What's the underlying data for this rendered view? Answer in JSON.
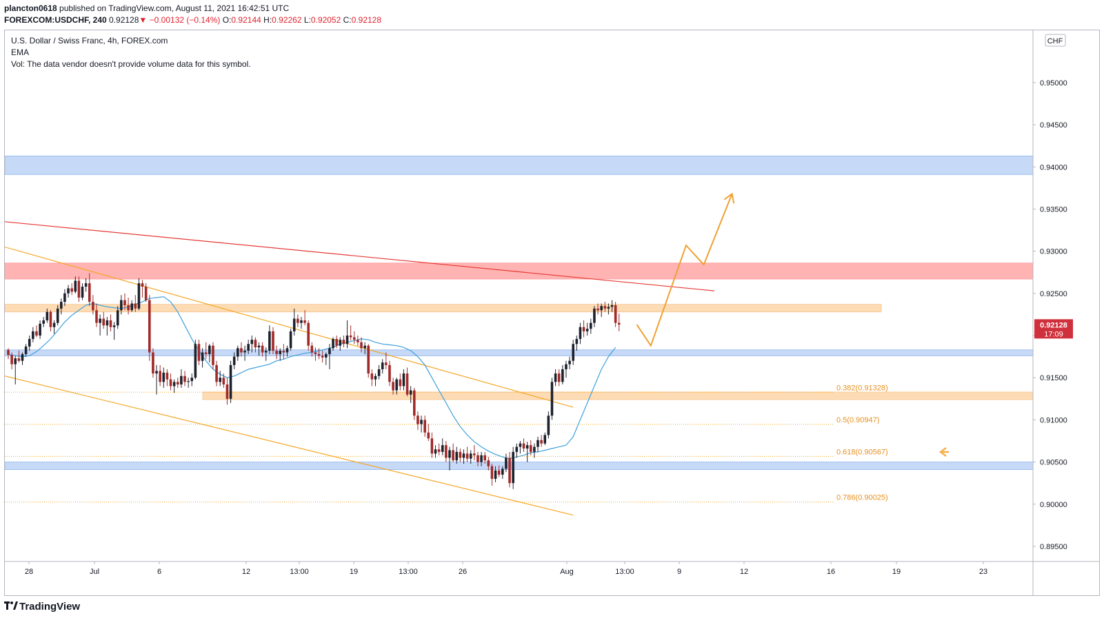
{
  "header": {
    "publisher": "plancton0618",
    "published_text": "published on TradingView.com, August 11, 2021 16:42:51 UTC",
    "symbol": "FOREXCOM:USDCHF, 240",
    "price": "0.92128",
    "change": "−0.00132 (−0.14%)",
    "ohlc": {
      "o_label": "O:",
      "o": "0.92144",
      "h_label": "H:",
      "h": "0.92262",
      "l_label": "L:",
      "l": "0.92052",
      "c_label": "C:",
      "c": "0.92128"
    }
  },
  "legend": {
    "title": "U.S. Dollar / Swiss Franc, 4h, FOREX.com",
    "indicator": "EMA",
    "volume_note": "Vol: The data vendor doesn't provide volume data for this symbol."
  },
  "footer": {
    "brand": "TradingView",
    "logo_icon": "tradingview-logo-icon"
  },
  "colors": {
    "up": "#1e222d",
    "down": "#a12a2a",
    "ema": "#3ea0dc",
    "channel": "#f5a623",
    "trendline": "#e53935",
    "blue_zone": "#c6d9f7",
    "red_zone": "#ffb3b3",
    "orange_zone": "#fddcb5",
    "price_badge": "#d0303c"
  },
  "chart_data": {
    "type": "candlestick",
    "currency_label": "CHF",
    "price_label": "0.92128",
    "countdown_label": "17:09",
    "y_ticks": [
      "0.95000",
      "0.94500",
      "0.94000",
      "0.93500",
      "0.93000",
      "0.92500",
      "0.92000",
      "0.91500",
      "0.91000",
      "0.90500",
      "0.90000",
      "0.89500"
    ],
    "y_values": [
      0.95,
      0.945,
      0.94,
      0.935,
      0.93,
      0.925,
      0.92,
      0.915,
      0.91,
      0.905,
      0.9,
      0.895
    ],
    "x_ticks": [
      "28",
      "Jul",
      "6",
      "12",
      "13:00",
      "19",
      "13:00",
      "26",
      "Aug",
      "13:00",
      "9",
      "12",
      "16",
      "19",
      "23"
    ],
    "ylim": [
      0.8932,
      0.9562
    ],
    "fib_levels": [
      {
        "label": "0.382(0.91328)",
        "value": 0.91328
      },
      {
        "label": "0.5(0.90947)",
        "value": 0.90947
      },
      {
        "label": "0.618(0.90567)",
        "value": 0.90567
      },
      {
        "label": "0.786(0.90025)",
        "value": 0.90025
      }
    ],
    "zones": [
      {
        "type": "support",
        "color": "blue",
        "from": 0.9391,
        "to": 0.9413
      },
      {
        "type": "resistance",
        "color": "red",
        "from": 0.9267,
        "to": 0.9286
      },
      {
        "type": "resistance",
        "color": "orange",
        "from": 0.9228,
        "to": 0.9237
      },
      {
        "type": "support",
        "color": "blue",
        "from": 0.9176,
        "to": 0.9183
      },
      {
        "type": "support",
        "color": "orange",
        "from": 0.9124,
        "to": 0.9133
      },
      {
        "type": "support",
        "color": "blue",
        "from": 0.9041,
        "to": 0.905
      }
    ],
    "candles": [
      [
        0.9183,
        0.9185,
        0.9172,
        0.9177
      ],
      [
        0.9177,
        0.918,
        0.916,
        0.9166
      ],
      [
        0.9166,
        0.9176,
        0.9142,
        0.9173
      ],
      [
        0.9173,
        0.9182,
        0.9168,
        0.917
      ],
      [
        0.917,
        0.918,
        0.9165,
        0.9178
      ],
      [
        0.9178,
        0.919,
        0.9175,
        0.9187
      ],
      [
        0.9187,
        0.92,
        0.9182,
        0.9196
      ],
      [
        0.9196,
        0.921,
        0.9192,
        0.9205
      ],
      [
        0.9205,
        0.9212,
        0.9198,
        0.92
      ],
      [
        0.92,
        0.9218,
        0.9196,
        0.9214
      ],
      [
        0.9214,
        0.9222,
        0.921,
        0.9218
      ],
      [
        0.9218,
        0.9232,
        0.9215,
        0.9228
      ],
      [
        0.9228,
        0.923,
        0.9205,
        0.921
      ],
      [
        0.921,
        0.9218,
        0.9202,
        0.9215
      ],
      [
        0.9215,
        0.9236,
        0.9212,
        0.9232
      ],
      [
        0.9232,
        0.9244,
        0.9225,
        0.924
      ],
      [
        0.924,
        0.9255,
        0.9235,
        0.925
      ],
      [
        0.925,
        0.926,
        0.9245,
        0.9256
      ],
      [
        0.9256,
        0.9262,
        0.9248,
        0.9252
      ],
      [
        0.9252,
        0.927,
        0.925,
        0.9265
      ],
      [
        0.9265,
        0.927,
        0.924,
        0.9245
      ],
      [
        0.9245,
        0.9262,
        0.9242,
        0.9258
      ],
      [
        0.9258,
        0.9268,
        0.9252,
        0.9262
      ],
      [
        0.9262,
        0.9274,
        0.9235,
        0.924
      ],
      [
        0.924,
        0.9248,
        0.9225,
        0.923
      ],
      [
        0.923,
        0.9238,
        0.921,
        0.9215
      ],
      [
        0.9215,
        0.9225,
        0.92,
        0.922
      ],
      [
        0.922,
        0.9228,
        0.9208,
        0.9212
      ],
      [
        0.9212,
        0.9222,
        0.92,
        0.9218
      ],
      [
        0.9218,
        0.9225,
        0.9205,
        0.921
      ],
      [
        0.921,
        0.9216,
        0.9195,
        0.9212
      ],
      [
        0.9212,
        0.9235,
        0.9208,
        0.923
      ],
      [
        0.923,
        0.9248,
        0.9225,
        0.9242
      ],
      [
        0.9242,
        0.925,
        0.923,
        0.9236
      ],
      [
        0.9236,
        0.9245,
        0.9225,
        0.923
      ],
      [
        0.923,
        0.9242,
        0.9228,
        0.9238
      ],
      [
        0.9238,
        0.9248,
        0.9228,
        0.9232
      ],
      [
        0.9232,
        0.9268,
        0.923,
        0.9262
      ],
      [
        0.9262,
        0.9266,
        0.9245,
        0.9258
      ],
      [
        0.9258,
        0.9262,
        0.924,
        0.9242
      ],
      [
        0.9242,
        0.9248,
        0.917,
        0.918
      ],
      [
        0.918,
        0.9185,
        0.915,
        0.9155
      ],
      [
        0.9155,
        0.9165,
        0.913,
        0.9158
      ],
      [
        0.9158,
        0.9165,
        0.914,
        0.9145
      ],
      [
        0.9145,
        0.9162,
        0.9138,
        0.9156
      ],
      [
        0.9156,
        0.916,
        0.914,
        0.9148
      ],
      [
        0.9148,
        0.9155,
        0.9135,
        0.914
      ],
      [
        0.914,
        0.9148,
        0.9132,
        0.9145
      ],
      [
        0.9145,
        0.915,
        0.9138,
        0.9142
      ],
      [
        0.9142,
        0.916,
        0.9138,
        0.9152
      ],
      [
        0.9152,
        0.9158,
        0.914,
        0.9145
      ],
      [
        0.9145,
        0.915,
        0.9138,
        0.9146
      ],
      [
        0.9146,
        0.9155,
        0.914,
        0.915
      ],
      [
        0.915,
        0.9195,
        0.9148,
        0.919
      ],
      [
        0.919,
        0.9195,
        0.9165,
        0.917
      ],
      [
        0.917,
        0.9185,
        0.9162,
        0.918
      ],
      [
        0.918,
        0.9192,
        0.9172,
        0.9178
      ],
      [
        0.9178,
        0.919,
        0.9168,
        0.9188
      ],
      [
        0.9188,
        0.9192,
        0.916,
        0.9165
      ],
      [
        0.9165,
        0.917,
        0.914,
        0.9145
      ],
      [
        0.9145,
        0.9158,
        0.914,
        0.915
      ],
      [
        0.915,
        0.9155,
        0.9138,
        0.9142
      ],
      [
        0.9142,
        0.915,
        0.9118,
        0.9125
      ],
      [
        0.9125,
        0.917,
        0.912,
        0.9165
      ],
      [
        0.9165,
        0.918,
        0.916,
        0.9175
      ],
      [
        0.9175,
        0.9188,
        0.917,
        0.9185
      ],
      [
        0.9185,
        0.9192,
        0.9175,
        0.918
      ],
      [
        0.918,
        0.9188,
        0.917,
        0.9182
      ],
      [
        0.9182,
        0.9195,
        0.9178,
        0.919
      ],
      [
        0.919,
        0.92,
        0.918,
        0.9195
      ],
      [
        0.9195,
        0.9198,
        0.918,
        0.9186
      ],
      [
        0.9186,
        0.9192,
        0.9176,
        0.9188
      ],
      [
        0.9188,
        0.9192,
        0.9175,
        0.918
      ],
      [
        0.918,
        0.9186,
        0.917,
        0.9182
      ],
      [
        0.9182,
        0.9212,
        0.9178,
        0.9205
      ],
      [
        0.9205,
        0.921,
        0.9178,
        0.9182
      ],
      [
        0.9182,
        0.9188,
        0.9172,
        0.9178
      ],
      [
        0.9178,
        0.9185,
        0.917,
        0.9182
      ],
      [
        0.9182,
        0.919,
        0.9172,
        0.918
      ],
      [
        0.918,
        0.9188,
        0.9175,
        0.9185
      ],
      [
        0.9185,
        0.9208,
        0.9182,
        0.9205
      ],
      [
        0.9205,
        0.9232,
        0.92,
        0.922
      ],
      [
        0.922,
        0.9225,
        0.921,
        0.9215
      ],
      [
        0.9215,
        0.9222,
        0.9208,
        0.9218
      ],
      [
        0.9218,
        0.923,
        0.9212,
        0.9215
      ],
      [
        0.9215,
        0.9218,
        0.9182,
        0.9188
      ],
      [
        0.9188,
        0.9192,
        0.9175,
        0.918
      ],
      [
        0.918,
        0.9186,
        0.917,
        0.9178
      ],
      [
        0.9178,
        0.9185,
        0.9172,
        0.9176
      ],
      [
        0.9176,
        0.9182,
        0.9168,
        0.9174
      ],
      [
        0.9174,
        0.918,
        0.9165,
        0.9178
      ],
      [
        0.9178,
        0.919,
        0.916,
        0.9185
      ],
      [
        0.9185,
        0.9198,
        0.9182,
        0.9196
      ],
      [
        0.9196,
        0.92,
        0.9185,
        0.9188
      ],
      [
        0.9188,
        0.9198,
        0.9182,
        0.9195
      ],
      [
        0.9195,
        0.92,
        0.9186,
        0.919
      ],
      [
        0.919,
        0.9218,
        0.9185,
        0.92
      ],
      [
        0.92,
        0.9212,
        0.9194,
        0.9198
      ],
      [
        0.9198,
        0.9205,
        0.919,
        0.9195
      ],
      [
        0.9195,
        0.92,
        0.9188,
        0.9192
      ],
      [
        0.9192,
        0.9198,
        0.918,
        0.9185
      ],
      [
        0.9185,
        0.9192,
        0.9178,
        0.9188
      ],
      [
        0.9188,
        0.919,
        0.915,
        0.9155
      ],
      [
        0.9155,
        0.916,
        0.914,
        0.9148
      ],
      [
        0.9148,
        0.9155,
        0.914,
        0.9152
      ],
      [
        0.9152,
        0.9165,
        0.9148,
        0.916
      ],
      [
        0.916,
        0.9172,
        0.9155,
        0.9168
      ],
      [
        0.9168,
        0.918,
        0.916,
        0.9165
      ],
      [
        0.9165,
        0.917,
        0.914,
        0.9145
      ],
      [
        0.9145,
        0.915,
        0.913,
        0.9135
      ],
      [
        0.9135,
        0.915,
        0.913,
        0.9148
      ],
      [
        0.9148,
        0.9155,
        0.9135,
        0.914
      ],
      [
        0.914,
        0.916,
        0.9135,
        0.9155
      ],
      [
        0.9155,
        0.9162,
        0.9128,
        0.913
      ],
      [
        0.913,
        0.914,
        0.912,
        0.9135
      ],
      [
        0.9135,
        0.9138,
        0.91,
        0.9105
      ],
      [
        0.9105,
        0.911,
        0.9088,
        0.9095
      ],
      [
        0.9095,
        0.9105,
        0.9085,
        0.91
      ],
      [
        0.91,
        0.9105,
        0.908,
        0.9085
      ],
      [
        0.9085,
        0.9095,
        0.9075,
        0.9078
      ],
      [
        0.9078,
        0.9085,
        0.9055,
        0.906
      ],
      [
        0.906,
        0.907,
        0.9055,
        0.9065
      ],
      [
        0.9065,
        0.9072,
        0.9058,
        0.9062
      ],
      [
        0.9062,
        0.9078,
        0.9058,
        0.907
      ],
      [
        0.907,
        0.9075,
        0.905,
        0.9055
      ],
      [
        0.9055,
        0.9068,
        0.904,
        0.9064
      ],
      [
        0.9064,
        0.9072,
        0.905,
        0.9052
      ],
      [
        0.9052,
        0.9068,
        0.9048,
        0.9062
      ],
      [
        0.9062,
        0.9066,
        0.905,
        0.9055
      ],
      [
        0.9055,
        0.9065,
        0.9048,
        0.906
      ],
      [
        0.906,
        0.9068,
        0.905,
        0.9054
      ],
      [
        0.9054,
        0.9064,
        0.9048,
        0.906
      ],
      [
        0.906,
        0.907,
        0.9052,
        0.9058
      ],
      [
        0.9058,
        0.9062,
        0.9045,
        0.905
      ],
      [
        0.905,
        0.9062,
        0.9045,
        0.9058
      ],
      [
        0.9058,
        0.9062,
        0.9048,
        0.9052
      ],
      [
        0.9052,
        0.9056,
        0.904,
        0.9045
      ],
      [
        0.9045,
        0.9048,
        0.9022,
        0.903
      ],
      [
        0.903,
        0.9045,
        0.9026,
        0.904
      ],
      [
        0.904,
        0.9046,
        0.9032,
        0.9035
      ],
      [
        0.9035,
        0.9045,
        0.903,
        0.9042
      ],
      [
        0.9042,
        0.906,
        0.9038,
        0.9055
      ],
      [
        0.9055,
        0.9062,
        0.902,
        0.9025
      ],
      [
        0.9025,
        0.9068,
        0.9018,
        0.9062
      ],
      [
        0.9062,
        0.9072,
        0.9055,
        0.9068
      ],
      [
        0.9068,
        0.9075,
        0.906,
        0.9072
      ],
      [
        0.9072,
        0.9078,
        0.9062,
        0.9066
      ],
      [
        0.9066,
        0.9074,
        0.905,
        0.907
      ],
      [
        0.907,
        0.9076,
        0.9058,
        0.9062
      ],
      [
        0.9062,
        0.9072,
        0.9055,
        0.9068
      ],
      [
        0.9068,
        0.908,
        0.9062,
        0.9076
      ],
      [
        0.9076,
        0.9082,
        0.9068,
        0.9072
      ],
      [
        0.9072,
        0.9085,
        0.907,
        0.9082
      ],
      [
        0.9082,
        0.911,
        0.9078,
        0.9105
      ],
      [
        0.9105,
        0.915,
        0.91,
        0.9145
      ],
      [
        0.9145,
        0.916,
        0.914,
        0.9155
      ],
      [
        0.9155,
        0.916,
        0.914,
        0.9145
      ],
      [
        0.9145,
        0.9165,
        0.9142,
        0.916
      ],
      [
        0.916,
        0.917,
        0.915,
        0.9166
      ],
      [
        0.9166,
        0.9175,
        0.916,
        0.917
      ],
      [
        0.917,
        0.9195,
        0.9165,
        0.919
      ],
      [
        0.919,
        0.92,
        0.9182,
        0.9196
      ],
      [
        0.9196,
        0.9215,
        0.919,
        0.921
      ],
      [
        0.921,
        0.9218,
        0.9198,
        0.9205
      ],
      [
        0.9205,
        0.9215,
        0.92,
        0.9208
      ],
      [
        0.9208,
        0.922,
        0.9202,
        0.9215
      ],
      [
        0.9215,
        0.9235,
        0.921,
        0.9232
      ],
      [
        0.9232,
        0.9238,
        0.9225,
        0.923
      ],
      [
        0.923,
        0.9238,
        0.9222,
        0.9235
      ],
      [
        0.9235,
        0.924,
        0.9228,
        0.9232
      ],
      [
        0.9232,
        0.9238,
        0.9225,
        0.9234
      ],
      [
        0.9234,
        0.9242,
        0.9228,
        0.9236
      ],
      [
        0.9236,
        0.924,
        0.921,
        0.9215
      ],
      [
        0.9215,
        0.9226,
        0.9205,
        0.9213
      ]
    ],
    "ema": [
      0.9178,
      0.9176,
      0.9175,
      0.9176,
      0.9181,
      0.9188,
      0.9196,
      0.9206,
      0.9216,
      0.9224,
      0.923,
      0.9236,
      0.9238,
      0.9236,
      0.9234,
      0.9233,
      0.9232,
      0.9234,
      0.9237,
      0.924,
      0.9244,
      0.9245,
      0.9246,
      0.924,
      0.9228,
      0.9212,
      0.9196,
      0.9182,
      0.917,
      0.916,
      0.9154,
      0.915,
      0.9152,
      0.9156,
      0.916,
      0.9162,
      0.9164,
      0.9166,
      0.917,
      0.9172,
      0.9175,
      0.9177,
      0.9179,
      0.918,
      0.9182,
      0.9184,
      0.9186,
      0.919,
      0.9192,
      0.9194,
      0.9196,
      0.9195,
      0.9192,
      0.919,
      0.9189,
      0.9188,
      0.9186,
      0.9182,
      0.9175,
      0.9165,
      0.915,
      0.9135,
      0.912,
      0.9105,
      0.9092,
      0.9082,
      0.9074,
      0.9068,
      0.9063,
      0.9059,
      0.9056,
      0.9054,
      0.9056,
      0.9058,
      0.9061,
      0.9062,
      0.9064,
      0.9066,
      0.9068,
      0.907,
      0.908,
      0.91,
      0.912,
      0.914,
      0.916,
      0.9175,
      0.9186
    ],
    "ema_start_index": 0,
    "ema_step": 2,
    "channel": {
      "upper": [
        [
          -1,
          0.9305
        ],
        [
          160,
          0.9115
        ]
      ],
      "lower": [
        [
          -1,
          0.9152
        ],
        [
          160,
          0.8987
        ]
      ]
    },
    "trendline": [
      [
        -1,
        0.9335
      ],
      [
        200,
        0.9253
      ]
    ],
    "projection": [
      [
        178,
        0.9213
      ],
      [
        182,
        0.9188
      ],
      [
        192,
        0.9307
      ],
      [
        197,
        0.9284
      ],
      [
        205,
        0.9368
      ]
    ]
  }
}
